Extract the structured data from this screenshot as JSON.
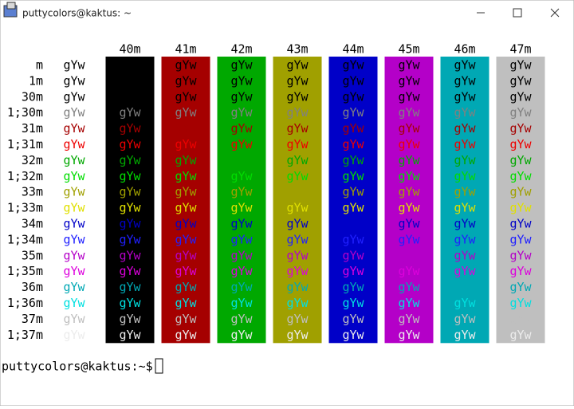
{
  "window": {
    "title": "puttycolors@kaktus: ~"
  },
  "terminal": {
    "sample": "gYw",
    "default_color": "#000000",
    "backgrounds": [
      {
        "label": "40m",
        "color": "#000000"
      },
      {
        "label": "41m",
        "color": "#a50000"
      },
      {
        "label": "42m",
        "color": "#00a800"
      },
      {
        "label": "43m",
        "color": "#a0a000"
      },
      {
        "label": "44m",
        "color": "#0000c8"
      },
      {
        "label": "45m",
        "color": "#b400c8"
      },
      {
        "label": "46m",
        "color": "#00a8b4"
      },
      {
        "label": "47m",
        "color": "#bfbfbf"
      }
    ],
    "rows": [
      {
        "label": "m",
        "color": "#000000"
      },
      {
        "label": "1m",
        "color": "#000000"
      },
      {
        "label": "30m",
        "color": "#000000"
      },
      {
        "label": "1;30m",
        "color": "#808080"
      },
      {
        "label": "31m",
        "color": "#a50000"
      },
      {
        "label": "1;31m",
        "color": "#ee0000"
      },
      {
        "label": "32m",
        "color": "#00a800"
      },
      {
        "label": "1;32m",
        "color": "#00dd00"
      },
      {
        "label": "33m",
        "color": "#a0a000"
      },
      {
        "label": "1;33m",
        "color": "#e0e000"
      },
      {
        "label": "34m",
        "color": "#0000c8"
      },
      {
        "label": "1;34m",
        "color": "#2020ff"
      },
      {
        "label": "35m",
        "color": "#b400c8"
      },
      {
        "label": "1;35m",
        "color": "#dd00dd"
      },
      {
        "label": "36m",
        "color": "#00a8b4"
      },
      {
        "label": "1;36m",
        "color": "#00e0e0"
      },
      {
        "label": "37m",
        "color": "#bfbfbf"
      },
      {
        "label": "1;37m",
        "color": "#ececec"
      }
    ],
    "prompt": "puttycolors@kaktus:~$"
  }
}
